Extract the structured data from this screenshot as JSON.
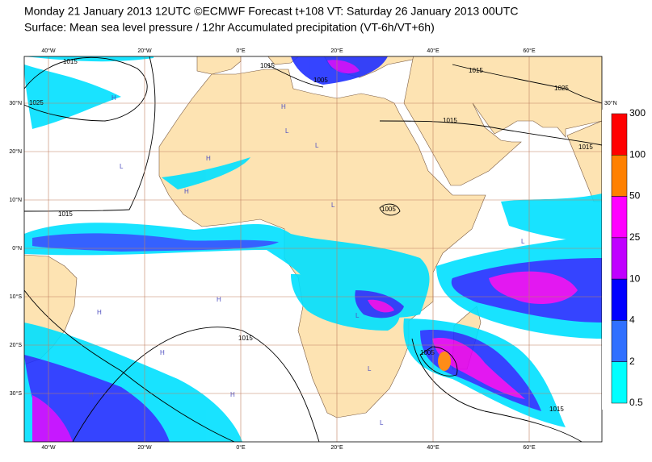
{
  "header": {
    "title": "Monday 21 January 2013 12UTC ©ECMWF Forecast t+108 VT: Saturday 26 January 2013 00UTC",
    "subtitle": "Surface: Mean sea level pressure / 12hr Accumulated precipitation (VT-6h/VT+6h)"
  },
  "map": {
    "lon_labels": [
      "40°W",
      "20°W",
      "0°E",
      "20°E",
      "40°E",
      "60°E"
    ],
    "lat_labels": [
      "30°N",
      "20°N",
      "10°N",
      "0°N",
      "10°S",
      "20°S",
      "30°S"
    ],
    "isobar_labels": [
      "1015",
      "1025",
      "1015",
      "1005",
      "1015",
      "1025",
      "1015",
      "1015",
      "1015",
      "1005",
      "1015",
      "1005",
      "1015"
    ],
    "pressure_markers": [
      "H",
      "H",
      "L",
      "L",
      "H",
      "L",
      "H",
      "L",
      "H",
      "L",
      "H",
      "L",
      "H",
      "H",
      "L",
      "H",
      "L"
    ]
  },
  "colorbar": {
    "levels": [
      300,
      100,
      50,
      25,
      10,
      4,
      2,
      0.5
    ],
    "colors": [
      "#ff0000",
      "#ff8000",
      "#ff00ff",
      "#c000ff",
      "#0000ff",
      "#3070ff",
      "#00ffff"
    ]
  }
}
